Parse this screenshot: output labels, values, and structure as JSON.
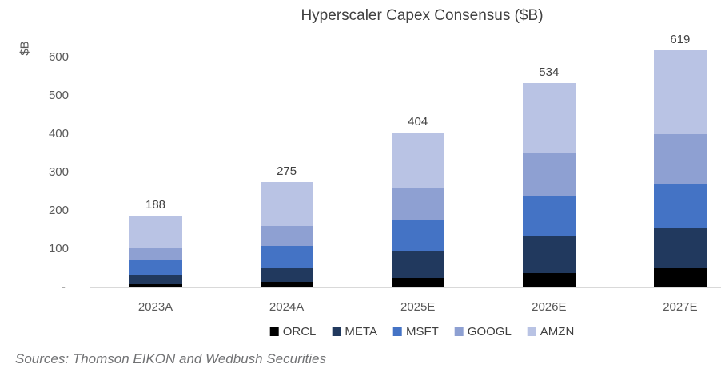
{
  "chart": {
    "title": "Hyperscaler Capex Consensus ($B)",
    "y_axis_title": "$B",
    "source_note": "Sources: Thomson EIKON and Wedbush Securities"
  },
  "chart_data": {
    "type": "bar",
    "stacked": true,
    "title": "Hyperscaler Capex Consensus ($B)",
    "xlabel": "",
    "ylabel": "$B",
    "categories": [
      "2023A",
      "2024A",
      "2025E",
      "2026E",
      "2027E"
    ],
    "series": [
      {
        "name": "ORCL",
        "color": "#000000",
        "values": [
          8,
          15,
          26,
          38,
          51
        ]
      },
      {
        "name": "META",
        "color": "#21395E",
        "values": [
          25,
          36,
          70,
          98,
          106
        ]
      },
      {
        "name": "MSFT",
        "color": "#4473C5",
        "values": [
          38,
          58,
          80,
          104,
          113
        ]
      },
      {
        "name": "GOOGL",
        "color": "#8EA0D2",
        "values": [
          32,
          51,
          85,
          109,
          129
        ]
      },
      {
        "name": "AMZN",
        "color": "#B9C3E4",
        "values": [
          85,
          115,
          143,
          185,
          220
        ]
      }
    ],
    "totals": [
      188,
      275,
      404,
      534,
      619
    ],
    "total_labels": [
      "188",
      "275",
      "404",
      "534",
      "619"
    ],
    "y_ticks": [
      {
        "label": "600",
        "value": 600
      },
      {
        "label": "500",
        "value": 500
      },
      {
        "label": "400",
        "value": 400
      },
      {
        "label": "300",
        "value": 300
      },
      {
        "label": "200",
        "value": 200
      },
      {
        "label": "100",
        "value": 100
      },
      {
        "label": " - ",
        "value": 0
      }
    ],
    "ylim": [
      0,
      650
    ],
    "grid": false,
    "legend_position": "bottom"
  }
}
